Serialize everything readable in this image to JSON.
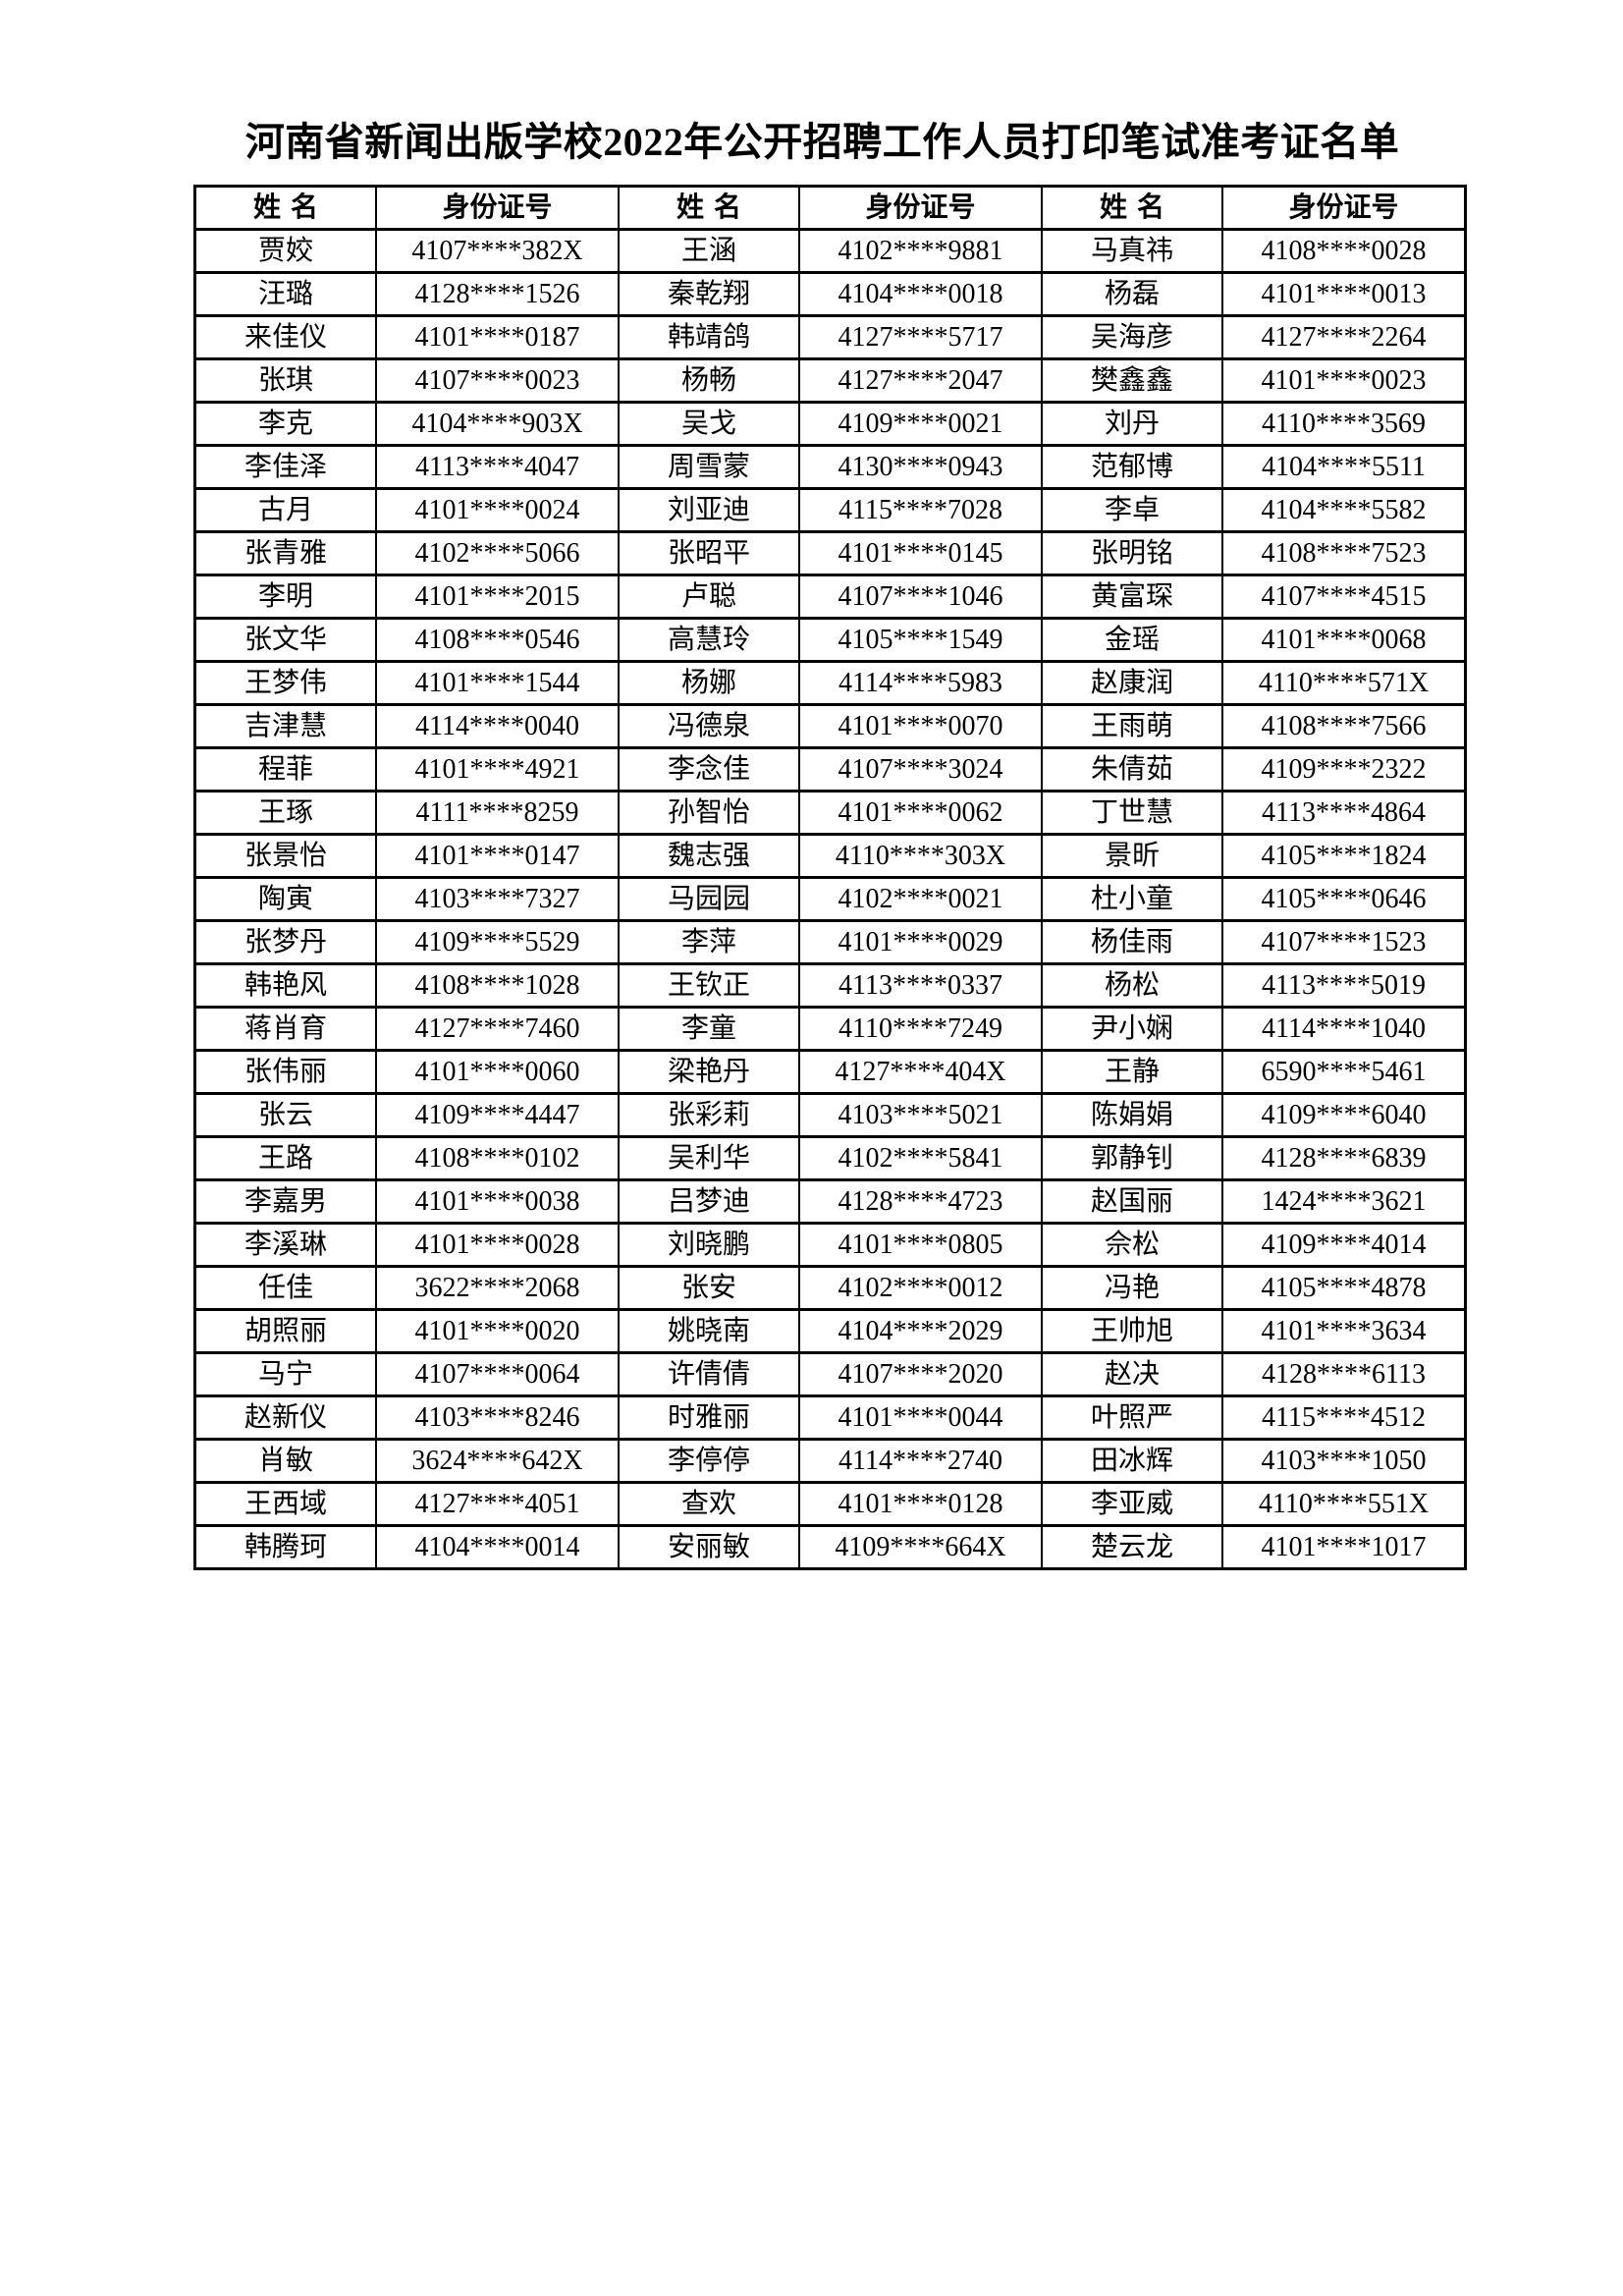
{
  "document": {
    "title": "河南省新闻出版学校2022年公开招聘工作人员打印笔试准考证名单"
  },
  "table": {
    "headers": [
      "姓名",
      "身份证号",
      "姓名",
      "身份证号",
      "姓名",
      "身份证号"
    ],
    "rows": [
      [
        "贾姣",
        "4107****382X",
        "王涵",
        "4102****9881",
        "马真祎",
        "4108****0028"
      ],
      [
        "汪璐",
        "4128****1526",
        "秦乾翔",
        "4104****0018",
        "杨磊",
        "4101****0013"
      ],
      [
        "来佳仪",
        "4101****0187",
        "韩靖鸽",
        "4127****5717",
        "吴海彦",
        "4127****2264"
      ],
      [
        "张琪",
        "4107****0023",
        "杨畅",
        "4127****2047",
        "樊鑫鑫",
        "4101****0023"
      ],
      [
        "李克",
        "4104****903X",
        "吴戈",
        "4109****0021",
        "刘丹",
        "4110****3569"
      ],
      [
        "李佳泽",
        "4113****4047",
        "周雪蒙",
        "4130****0943",
        "范郁博",
        "4104****5511"
      ],
      [
        "古月",
        "4101****0024",
        "刘亚迪",
        "4115****7028",
        "李卓",
        "4104****5582"
      ],
      [
        "张青雅",
        "4102****5066",
        "张昭平",
        "4101****0145",
        "张明铭",
        "4108****7523"
      ],
      [
        "李明",
        "4101****2015",
        "卢聪",
        "4107****1046",
        "黄富琛",
        "4107****4515"
      ],
      [
        "张文华",
        "4108****0546",
        "高慧玲",
        "4105****1549",
        "金瑶",
        "4101****0068"
      ],
      [
        "王梦伟",
        "4101****1544",
        "杨娜",
        "4114****5983",
        "赵康润",
        "4110****571X"
      ],
      [
        "吉津慧",
        "4114****0040",
        "冯德泉",
        "4101****0070",
        "王雨萌",
        "4108****7566"
      ],
      [
        "程菲",
        "4101****4921",
        "李念佳",
        "4107****3024",
        "朱倩茹",
        "4109****2322"
      ],
      [
        "王琢",
        "4111****8259",
        "孙智怡",
        "4101****0062",
        "丁世慧",
        "4113****4864"
      ],
      [
        "张景怡",
        "4101****0147",
        "魏志强",
        "4110****303X",
        "景昕",
        "4105****1824"
      ],
      [
        "陶寅",
        "4103****7327",
        "马园园",
        "4102****0021",
        "杜小童",
        "4105****0646"
      ],
      [
        "张梦丹",
        "4109****5529",
        "李萍",
        "4101****0029",
        "杨佳雨",
        "4107****1523"
      ],
      [
        "韩艳风",
        "4108****1028",
        "王钦正",
        "4113****0337",
        "杨松",
        "4113****5019"
      ],
      [
        "蒋肖育",
        "4127****7460",
        "李童",
        "4110****7249",
        "尹小娴",
        "4114****1040"
      ],
      [
        "张伟丽",
        "4101****0060",
        "梁艳丹",
        "4127****404X",
        "王静",
        "6590****5461"
      ],
      [
        "张云",
        "4109****4447",
        "张彩莉",
        "4103****5021",
        "陈娟娟",
        "4109****6040"
      ],
      [
        "王路",
        "4108****0102",
        "吴利华",
        "4102****5841",
        "郭静钊",
        "4128****6839"
      ],
      [
        "李嘉男",
        "4101****0038",
        "吕梦迪",
        "4128****4723",
        "赵国丽",
        "1424****3621"
      ],
      [
        "李溪琳",
        "4101****0028",
        "刘晓鹏",
        "4101****0805",
        "佘松",
        "4109****4014"
      ],
      [
        "任佳",
        "3622****2068",
        "张安",
        "4102****0012",
        "冯艳",
        "4105****4878"
      ],
      [
        "胡照丽",
        "4101****0020",
        "姚晓南",
        "4104****2029",
        "王帅旭",
        "4101****3634"
      ],
      [
        "马宁",
        "4107****0064",
        "许倩倩",
        "4107****2020",
        "赵决",
        "4128****6113"
      ],
      [
        "赵新仪",
        "4103****8246",
        "时雅丽",
        "4101****0044",
        "叶照严",
        "4115****4512"
      ],
      [
        "肖敏",
        "3624****642X",
        "李停停",
        "4114****2740",
        "田冰辉",
        "4103****1050"
      ],
      [
        "王西域",
        "4127****4051",
        "查欢",
        "4101****0128",
        "李亚威",
        "4110****551X"
      ],
      [
        "韩腾珂",
        "4104****0014",
        "安丽敏",
        "4109****664X",
        "楚云龙",
        "4101****1017"
      ]
    ]
  }
}
